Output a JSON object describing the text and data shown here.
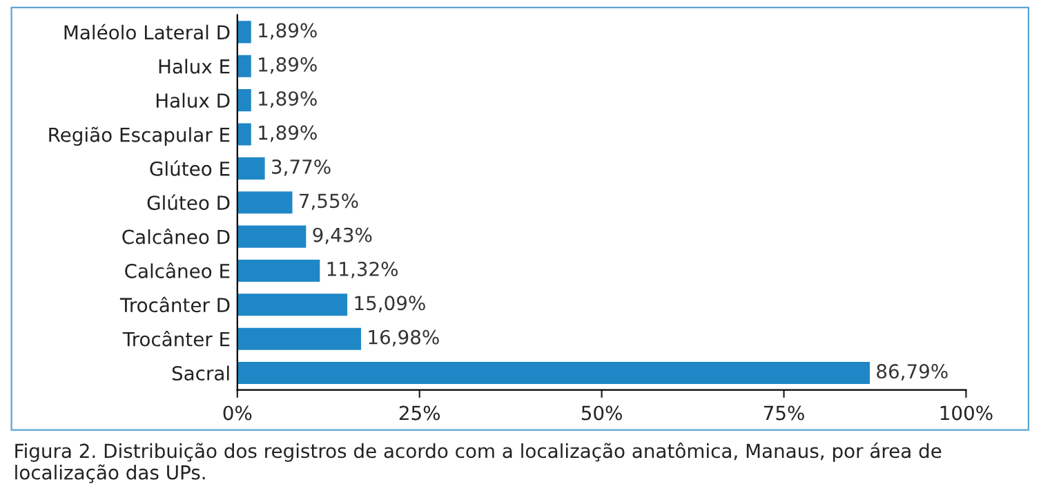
{
  "chart_data": {
    "type": "bar",
    "orientation": "horizontal",
    "categories": [
      "Maléolo Lateral D",
      "Halux E",
      "Halux D",
      "Região Escapular E",
      "Glúteo E",
      "Glúteo D",
      "Calcâneo D",
      "Calcâneo E",
      "Trocânter D",
      "Trocânter E",
      "Sacral"
    ],
    "values": [
      1.89,
      1.89,
      1.89,
      1.89,
      3.77,
      7.55,
      9.43,
      11.32,
      15.09,
      16.98,
      86.79
    ],
    "value_labels": [
      "1,89%",
      "1,89%",
      "1,89%",
      "1,89%",
      "3,77%",
      "7,55%",
      "9,43%",
      "11,32%",
      "15,09%",
      "16,98%",
      "86,79%"
    ],
    "color": "#1f87c6",
    "xlim": [
      0,
      100
    ],
    "xticks": [
      {
        "value": 0,
        "label": "0%"
      },
      {
        "value": 25,
        "label": "25%"
      },
      {
        "value": 50,
        "label": "50%"
      },
      {
        "value": 75,
        "label": "75%"
      },
      {
        "value": 100,
        "label": "100%"
      }
    ],
    "grid": false,
    "legend": false,
    "annotations": [
      "Figura 2. Distribuição dos registros de acordo com a localização anatômica, Manaus, por área de localização das UPs."
    ]
  }
}
